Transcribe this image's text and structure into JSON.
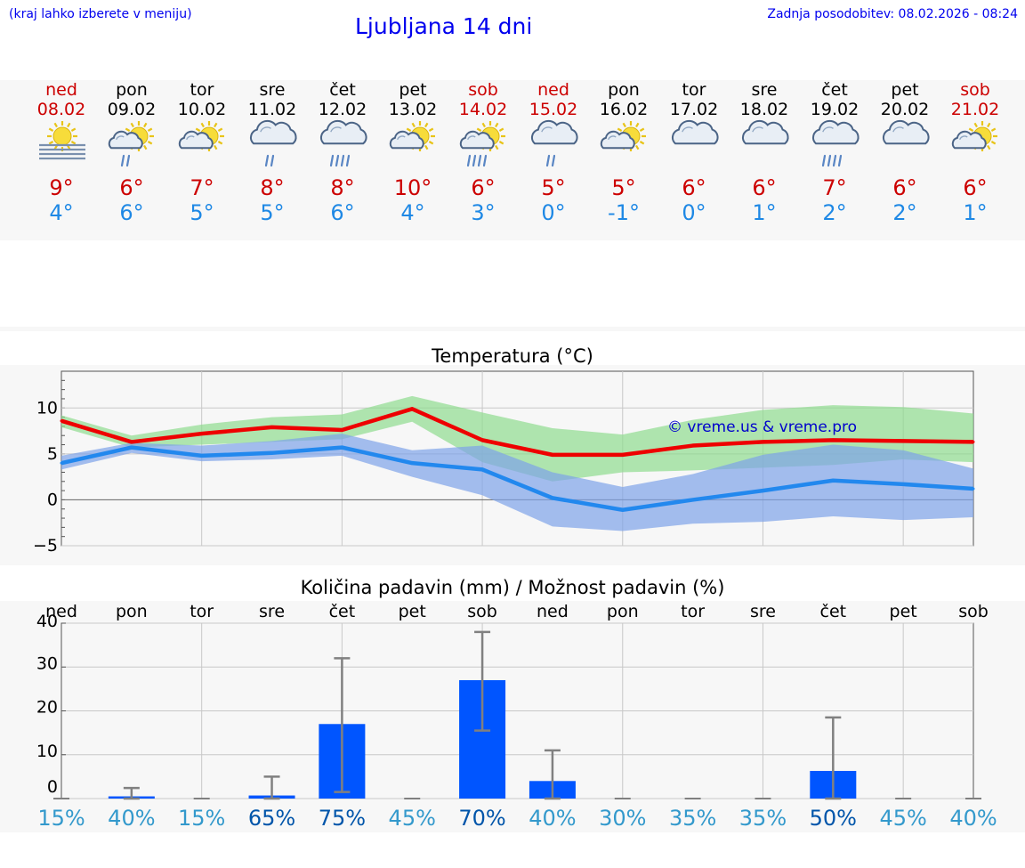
{
  "header": {
    "note": "(kraj lahko izberete v meniju)",
    "title": "Ljubljana 14 dni",
    "updated": "Zadnja posodobitev: 08.02.2026 - 08:24"
  },
  "days": [
    {
      "name": "ned",
      "date": "08.02",
      "weekend": true,
      "icon": "fog-sun-icon",
      "max": "9°",
      "min": "4°"
    },
    {
      "name": "pon",
      "date": "09.02",
      "weekend": false,
      "icon": "sun-cloud-rain-icon",
      "max": "6°",
      "min": "6°"
    },
    {
      "name": "tor",
      "date": "10.02",
      "weekend": false,
      "icon": "sun-cloud-icon",
      "max": "7°",
      "min": "5°"
    },
    {
      "name": "sre",
      "date": "11.02",
      "weekend": false,
      "icon": "cloud-rain-icon",
      "max": "8°",
      "min": "5°"
    },
    {
      "name": "čet",
      "date": "12.02",
      "weekend": false,
      "icon": "cloud-heavy-rain-icon",
      "max": "8°",
      "min": "6°"
    },
    {
      "name": "pet",
      "date": "13.02",
      "weekend": false,
      "icon": "sun-cloud-icon",
      "max": "10°",
      "min": "4°"
    },
    {
      "name": "sob",
      "date": "14.02",
      "weekend": true,
      "icon": "sun-cloud-heavy-rain-icon",
      "max": "6°",
      "min": "3°"
    },
    {
      "name": "ned",
      "date": "15.02",
      "weekend": true,
      "icon": "cloud-rain-icon",
      "max": "5°",
      "min": "0°"
    },
    {
      "name": "pon",
      "date": "16.02",
      "weekend": false,
      "icon": "sun-cloud-icon",
      "max": "5°",
      "min": "-1°"
    },
    {
      "name": "tor",
      "date": "17.02",
      "weekend": false,
      "icon": "cloud-icon",
      "max": "6°",
      "min": "0°"
    },
    {
      "name": "sre",
      "date": "18.02",
      "weekend": false,
      "icon": "cloud-icon",
      "max": "6°",
      "min": "1°"
    },
    {
      "name": "čet",
      "date": "19.02",
      "weekend": false,
      "icon": "cloud-heavy-rain-icon",
      "max": "7°",
      "min": "2°"
    },
    {
      "name": "pet",
      "date": "20.02",
      "weekend": false,
      "icon": "cloud-icon",
      "max": "6°",
      "min": "2°"
    },
    {
      "name": "sob",
      "date": "21.02",
      "weekend": true,
      "icon": "sun-cloud-icon",
      "max": "6°",
      "min": "1°"
    }
  ],
  "colors": {
    "max": "#ee0000",
    "min": "#2288ee",
    "max_band": "#8fdc8f",
    "min_band": "#7ea2e8",
    "bar": "#0055ff",
    "error": "#808080",
    "weekend": "#cc0000",
    "prob_low": "#3399cc",
    "prob_high": "#0055aa",
    "watermark": "#0000cc"
  },
  "chart_data": [
    {
      "type": "line",
      "title": "Temperatura (°C)",
      "watermark": "© vreme.us & vreme.pro",
      "xlabel": "",
      "ylabel": "",
      "ylim": [
        -5,
        14
      ],
      "yticks": [
        10,
        5,
        0,
        -5
      ],
      "ytick_labels": [
        "10",
        "5",
        "0",
        "−5"
      ],
      "grid": true,
      "categories": [
        "08.02",
        "09.02",
        "10.02",
        "11.02",
        "12.02",
        "13.02",
        "14.02",
        "15.02",
        "16.02",
        "17.02",
        "18.02",
        "19.02",
        "20.02",
        "21.02"
      ],
      "series": [
        {
          "name": "max",
          "values": [
            8.6,
            6.3,
            7.2,
            7.9,
            7.6,
            9.9,
            6.5,
            4.9,
            4.9,
            5.9,
            6.3,
            6.5,
            6.4,
            6.3
          ]
        },
        {
          "name": "min",
          "values": [
            4.0,
            5.7,
            4.8,
            5.1,
            5.7,
            4.0,
            3.3,
            0.2,
            -1.1,
            0.0,
            1.0,
            2.1,
            1.7,
            1.2
          ]
        }
      ],
      "bands": [
        {
          "name": "max_range",
          "low": [
            7.9,
            5.7,
            6.0,
            6.3,
            6.6,
            8.5,
            4.1,
            2.0,
            3.0,
            3.2,
            3.5,
            3.8,
            4.4,
            4.1
          ],
          "high": [
            9.2,
            7.0,
            8.2,
            9.0,
            9.3,
            11.3,
            9.5,
            7.8,
            7.1,
            8.7,
            9.8,
            10.3,
            10.1,
            9.4
          ]
        },
        {
          "name": "min_range",
          "low": [
            3.3,
            5.1,
            4.2,
            4.4,
            4.8,
            2.5,
            0.5,
            -2.9,
            -3.4,
            -2.6,
            -2.4,
            -1.8,
            -2.2,
            -1.9
          ],
          "high": [
            4.8,
            6.2,
            5.9,
            6.4,
            7.2,
            5.4,
            5.9,
            3.0,
            1.4,
            2.8,
            4.9,
            6.0,
            5.4,
            3.4
          ]
        }
      ]
    },
    {
      "type": "bar",
      "title": "Količina padavin (mm) / Možnost padavin (%)",
      "xlabel": "",
      "ylabel": "",
      "ylim": [
        0,
        40
      ],
      "yticks": [
        40,
        30,
        20,
        10,
        0
      ],
      "grid": true,
      "categories": [
        "ned",
        "pon",
        "tor",
        "sre",
        "čet",
        "pet",
        "sob",
        "ned",
        "pon",
        "tor",
        "sre",
        "čet",
        "pet",
        "sob"
      ],
      "values": [
        0,
        0.5,
        0,
        0.7,
        17.0,
        0,
        27.0,
        4.0,
        0,
        0,
        0,
        6.3,
        0,
        0
      ],
      "error_high": [
        0,
        2.4,
        0,
        5.0,
        32.0,
        0,
        38.0,
        11.0,
        0,
        0,
        0,
        18.5,
        0,
        0
      ],
      "error_low": [
        0,
        0,
        0,
        0,
        1.5,
        0,
        15.5,
        0,
        0,
        0,
        0,
        0,
        0,
        0
      ],
      "probability": [
        "15%",
        "40%",
        "15%",
        "65%",
        "75%",
        "45%",
        "70%",
        "40%",
        "30%",
        "35%",
        "35%",
        "50%",
        "45%",
        "40%"
      ],
      "probability_values": [
        15,
        40,
        15,
        65,
        75,
        45,
        70,
        40,
        30,
        35,
        35,
        50,
        45,
        40
      ]
    }
  ]
}
